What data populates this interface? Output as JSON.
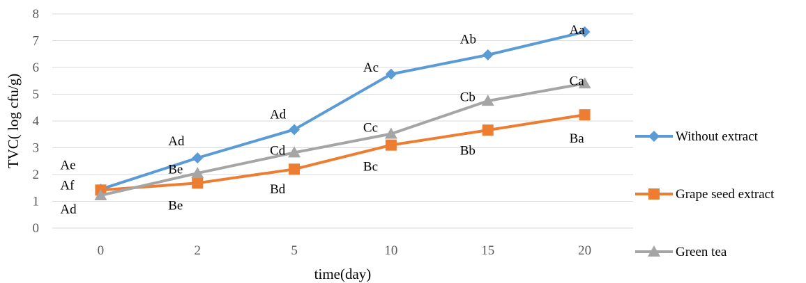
{
  "chart_data": {
    "type": "line",
    "categories": [
      "0",
      "2",
      "5",
      "10",
      "15",
      "20"
    ],
    "series": [
      {
        "name": "Without extract",
        "color": "#5b9bd5",
        "marker": "diamond",
        "values": [
          1.45,
          2.62,
          3.68,
          5.75,
          6.47,
          7.33
        ]
      },
      {
        "name": "Grape seed extract",
        "color": "#ed7d31",
        "marker": "square",
        "values": [
          1.42,
          1.68,
          2.2,
          3.1,
          3.66,
          4.23
        ]
      },
      {
        "name": "Green tea",
        "color": "#a5a5a5",
        "marker": "triangle",
        "values": [
          1.22,
          2.05,
          2.82,
          3.52,
          4.75,
          5.4
        ]
      }
    ],
    "xlabel": "time(day)",
    "ylabel": "TVC( log cfu/g)",
    "ylim": [
      0,
      8
    ],
    "yticks": [
      "0",
      "1",
      "2",
      "3",
      "4",
      "5",
      "6",
      "7",
      "8"
    ],
    "grid": true,
    "legend": "right",
    "annotations": [
      {
        "text": "Ae",
        "x": "0",
        "y": 2.35
      },
      {
        "text": "Af",
        "x": "0",
        "y": 1.6
      },
      {
        "text": "Ad",
        "x": "0",
        "y": 0.7
      },
      {
        "text": "Ad",
        "x": "2",
        "y": 3.25
      },
      {
        "text": "Be",
        "x": "2",
        "y": 2.2
      },
      {
        "text": "Be",
        "x": "2",
        "y": 0.85
      },
      {
        "text": "Ad",
        "x": "5",
        "y": 4.25
      },
      {
        "text": "Cd",
        "x": "5",
        "y": 2.9
      },
      {
        "text": "Bd",
        "x": "5",
        "y": 1.45
      },
      {
        "text": "Ac",
        "x": "10",
        "y": 6.0
      },
      {
        "text": "Cc",
        "x": "10",
        "y": 3.75
      },
      {
        "text": "Bc",
        "x": "10",
        "y": 2.3
      },
      {
        "text": "Ab",
        "x": "15",
        "y": 7.05
      },
      {
        "text": "Cb",
        "x": "15",
        "y": 4.9
      },
      {
        "text": "Bb",
        "x": "15",
        "y": 2.9
      },
      {
        "text": "Aa",
        "x": "20",
        "y": 7.4
      },
      {
        "text": "Ca",
        "x": "20",
        "y": 5.5
      },
      {
        "text": "Ba",
        "x": "20",
        "y": 3.35
      }
    ]
  }
}
